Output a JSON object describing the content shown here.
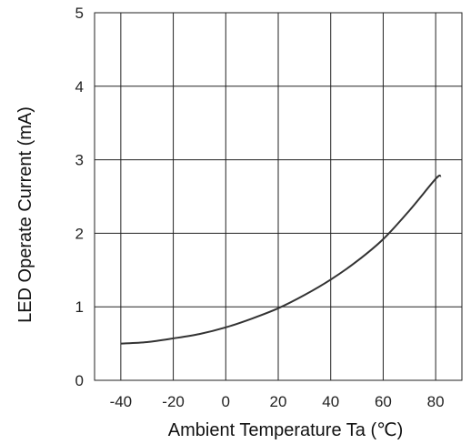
{
  "chart_data": {
    "type": "line",
    "title": "",
    "xlabel": "Ambient Temperature Ta (℃)",
    "ylabel": "LED Operate Current (mA)",
    "xlim": [
      -50,
      90
    ],
    "ylim": [
      0,
      5
    ],
    "xticks": [
      -40,
      -20,
      0,
      20,
      40,
      60,
      80
    ],
    "yticks": [
      0,
      1,
      2,
      3,
      4,
      5
    ],
    "grid": true,
    "legend": "none",
    "series": [
      {
        "values": [
          {
            "x": -40,
            "y": 0.5
          },
          {
            "x": -30,
            "y": 0.52
          },
          {
            "x": -20,
            "y": 0.57
          },
          {
            "x": -10,
            "y": 0.63
          },
          {
            "x": 0,
            "y": 0.72
          },
          {
            "x": 10,
            "y": 0.84
          },
          {
            "x": 20,
            "y": 0.98
          },
          {
            "x": 30,
            "y": 1.16
          },
          {
            "x": 40,
            "y": 1.37
          },
          {
            "x": 50,
            "y": 1.62
          },
          {
            "x": 60,
            "y": 1.92
          },
          {
            "x": 70,
            "y": 2.31
          },
          {
            "x": 80,
            "y": 2.74
          },
          {
            "x": 82,
            "y": 2.78
          }
        ],
        "color": "#333333"
      }
    ]
  }
}
